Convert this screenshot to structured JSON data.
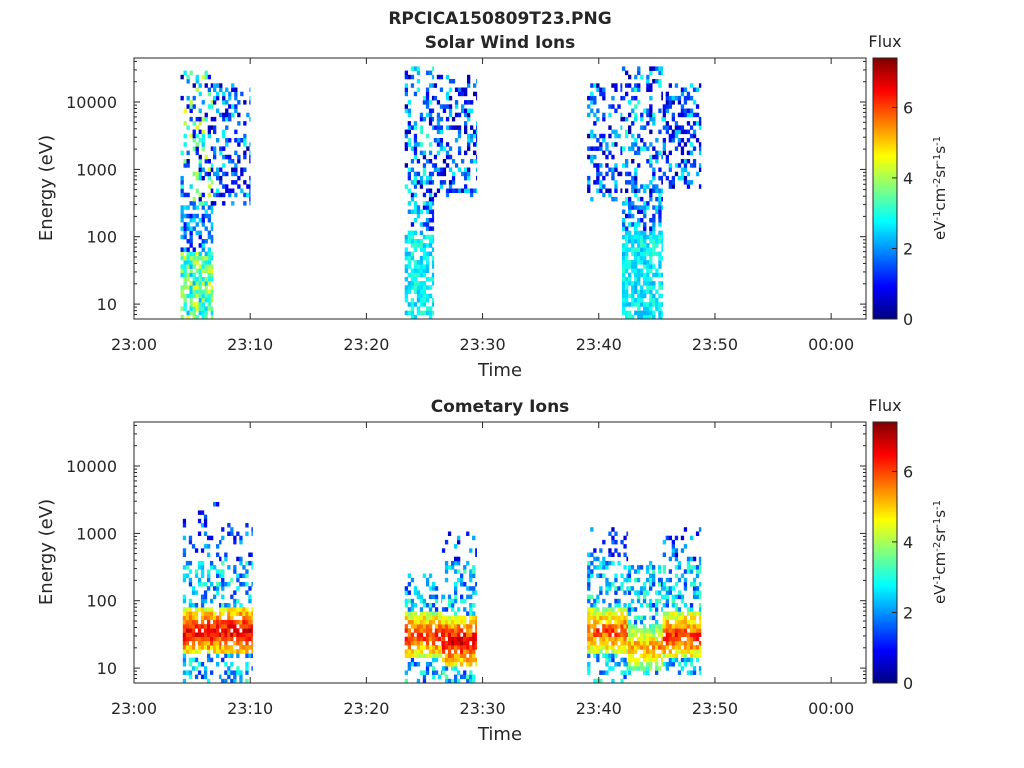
{
  "figure": {
    "title": "RPCICA150809T23.PNG"
  },
  "colorbar": {
    "label": "Flux",
    "min": 0,
    "max": 7.4,
    "ticks": [
      0,
      2,
      4,
      6
    ],
    "unit_main": "eV",
    "unit_sup1": "-1",
    "unit_cm": "cm",
    "unit_sup2": "-2",
    "unit_sr": "sr",
    "unit_sup3": "-1",
    "unit_s": "s",
    "unit_sup4": "-1",
    "colormap": "jet"
  },
  "chart_data": [
    {
      "type": "heatmap",
      "title": "Solar Wind Ions",
      "xlabel": "Time",
      "ylabel": "Energy (eV)",
      "yscale": "log",
      "xlim_minutes_after_23_00": [
        0,
        63
      ],
      "ylim": [
        6,
        45000
      ],
      "xticks": [
        "23:00",
        "23:10",
        "23:20",
        "23:30",
        "23:40",
        "23:50",
        "00:00"
      ],
      "yticks": [
        "10",
        "100",
        "1000",
        "10000"
      ],
      "ytick_values": [
        10,
        100,
        1000,
        10000
      ],
      "bursts": [
        {
          "start_min": 4.0,
          "end_min": 6.8,
          "emin": 6,
          "emax": 30000,
          "high_flux_emax": 60,
          "peak_flux": 4.6
        },
        {
          "start_min": 6.8,
          "end_min": 10.0,
          "emin": 280,
          "emax": 20000,
          "high_flux_emax": 0,
          "peak_flux": 2.8
        },
        {
          "start_min": 23.3,
          "end_min": 25.8,
          "emin": 6,
          "emax": 35000,
          "high_flux_emax": 100,
          "peak_flux": 3.2
        },
        {
          "start_min": 25.8,
          "end_min": 29.5,
          "emin": 400,
          "emax": 25000,
          "high_flux_emax": 0,
          "peak_flux": 2.8
        },
        {
          "start_min": 39.0,
          "end_min": 42.0,
          "emin": 350,
          "emax": 20000,
          "high_flux_emax": 0,
          "peak_flux": 2.8
        },
        {
          "start_min": 42.0,
          "end_min": 45.5,
          "emin": 6,
          "emax": 35000,
          "high_flux_emax": 120,
          "peak_flux": 3.2
        },
        {
          "start_min": 45.5,
          "end_min": 48.8,
          "emin": 500,
          "emax": 20000,
          "high_flux_emax": 0,
          "peak_flux": 2.8
        }
      ]
    },
    {
      "type": "heatmap",
      "title": "Cometary Ions",
      "xlabel": "Time",
      "ylabel": "Energy (eV)",
      "yscale": "log",
      "xlim_minutes_after_23_00": [
        0,
        63
      ],
      "ylim": [
        6,
        45000
      ],
      "xticks": [
        "23:00",
        "23:10",
        "23:20",
        "23:30",
        "23:40",
        "23:50",
        "00:00"
      ],
      "yticks": [
        "10",
        "100",
        "1000",
        "10000"
      ],
      "ytick_values": [
        10,
        100,
        1000,
        10000
      ],
      "bursts": [
        {
          "start_min": 4.2,
          "end_min": 7.5,
          "emin": 6,
          "emax": 3000,
          "peak_energy": 35,
          "peak_flux": 7.2
        },
        {
          "start_min": 7.5,
          "end_min": 10.2,
          "emin": 6,
          "emax": 1400,
          "peak_energy": 35,
          "peak_flux": 7.3
        },
        {
          "start_min": 23.3,
          "end_min": 26.5,
          "emin": 6,
          "emax": 250,
          "peak_energy": 30,
          "peak_flux": 6.8
        },
        {
          "start_min": 26.5,
          "end_min": 29.5,
          "emin": 6,
          "emax": 1100,
          "peak_energy": 25,
          "peak_flux": 7.3
        },
        {
          "start_min": 39.0,
          "end_min": 42.5,
          "emin": 6,
          "emax": 1200,
          "peak_energy": 35,
          "peak_flux": 6.6
        },
        {
          "start_min": 42.5,
          "end_min": 45.5,
          "emin": 8,
          "emax": 400,
          "peak_energy": 20,
          "peak_flux": 6.0
        },
        {
          "start_min": 45.5,
          "end_min": 48.8,
          "emin": 8,
          "emax": 1300,
          "peak_energy": 30,
          "peak_flux": 6.8
        }
      ]
    }
  ]
}
